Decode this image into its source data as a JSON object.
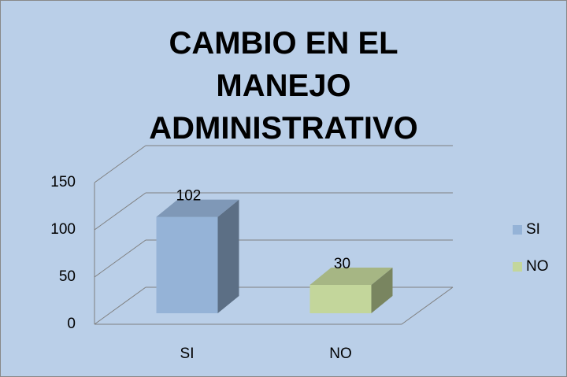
{
  "chart_data": {
    "type": "bar",
    "title": "CAMBIO EN EL MANEJO ADMINISTRATIVO",
    "categories": [
      "SI",
      "NO"
    ],
    "series": [
      {
        "name": "SI",
        "color": "#95b3d7",
        "values": [
          102,
          null
        ]
      },
      {
        "name": "NO",
        "color": "#c3d69b",
        "values": [
          null,
          30
        ]
      }
    ],
    "ylim": [
      0,
      150
    ],
    "yticks": [
      0,
      50,
      100,
      150
    ],
    "grid": true,
    "legend": "right"
  }
}
